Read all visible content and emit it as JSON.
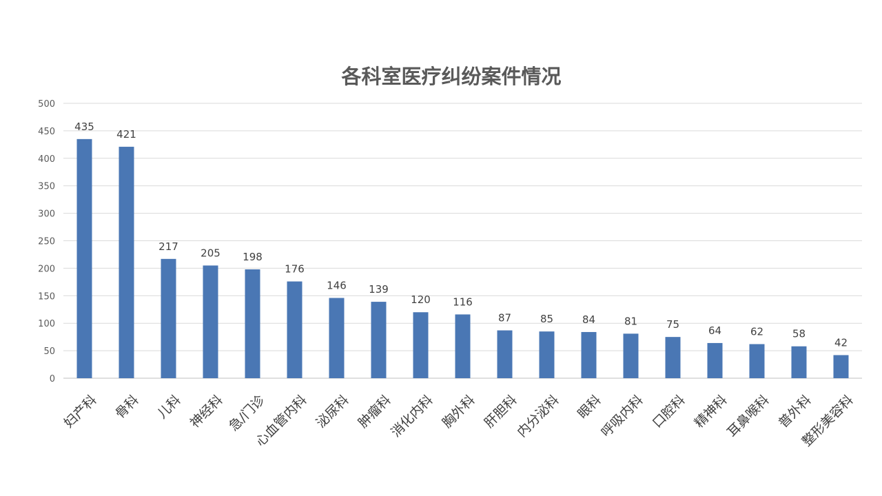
{
  "chart_data": {
    "type": "bar",
    "title": "各科室医疗纠纷案件情况",
    "xlabel": "",
    "ylabel": "",
    "ylim": [
      0,
      500
    ],
    "yticks": [
      0,
      50,
      100,
      150,
      200,
      250,
      300,
      350,
      400,
      450,
      500
    ],
    "grid": true,
    "legend": "none",
    "bar_color": "#4a77b4",
    "categories": [
      "妇产科",
      "骨科",
      "儿科",
      "神经科",
      "急/门诊",
      "心血管内科",
      "泌尿科",
      "肿瘤科",
      "消化内科",
      "胸外科",
      "肝胆科",
      "内分泌科",
      "眼科",
      "呼吸内科",
      "口腔科",
      "精神科",
      "耳鼻喉科",
      "普外科",
      "整形美容科"
    ],
    "values": [
      435,
      421,
      217,
      205,
      198,
      176,
      146,
      139,
      120,
      116,
      87,
      85,
      84,
      81,
      75,
      64,
      62,
      58,
      42
    ]
  }
}
